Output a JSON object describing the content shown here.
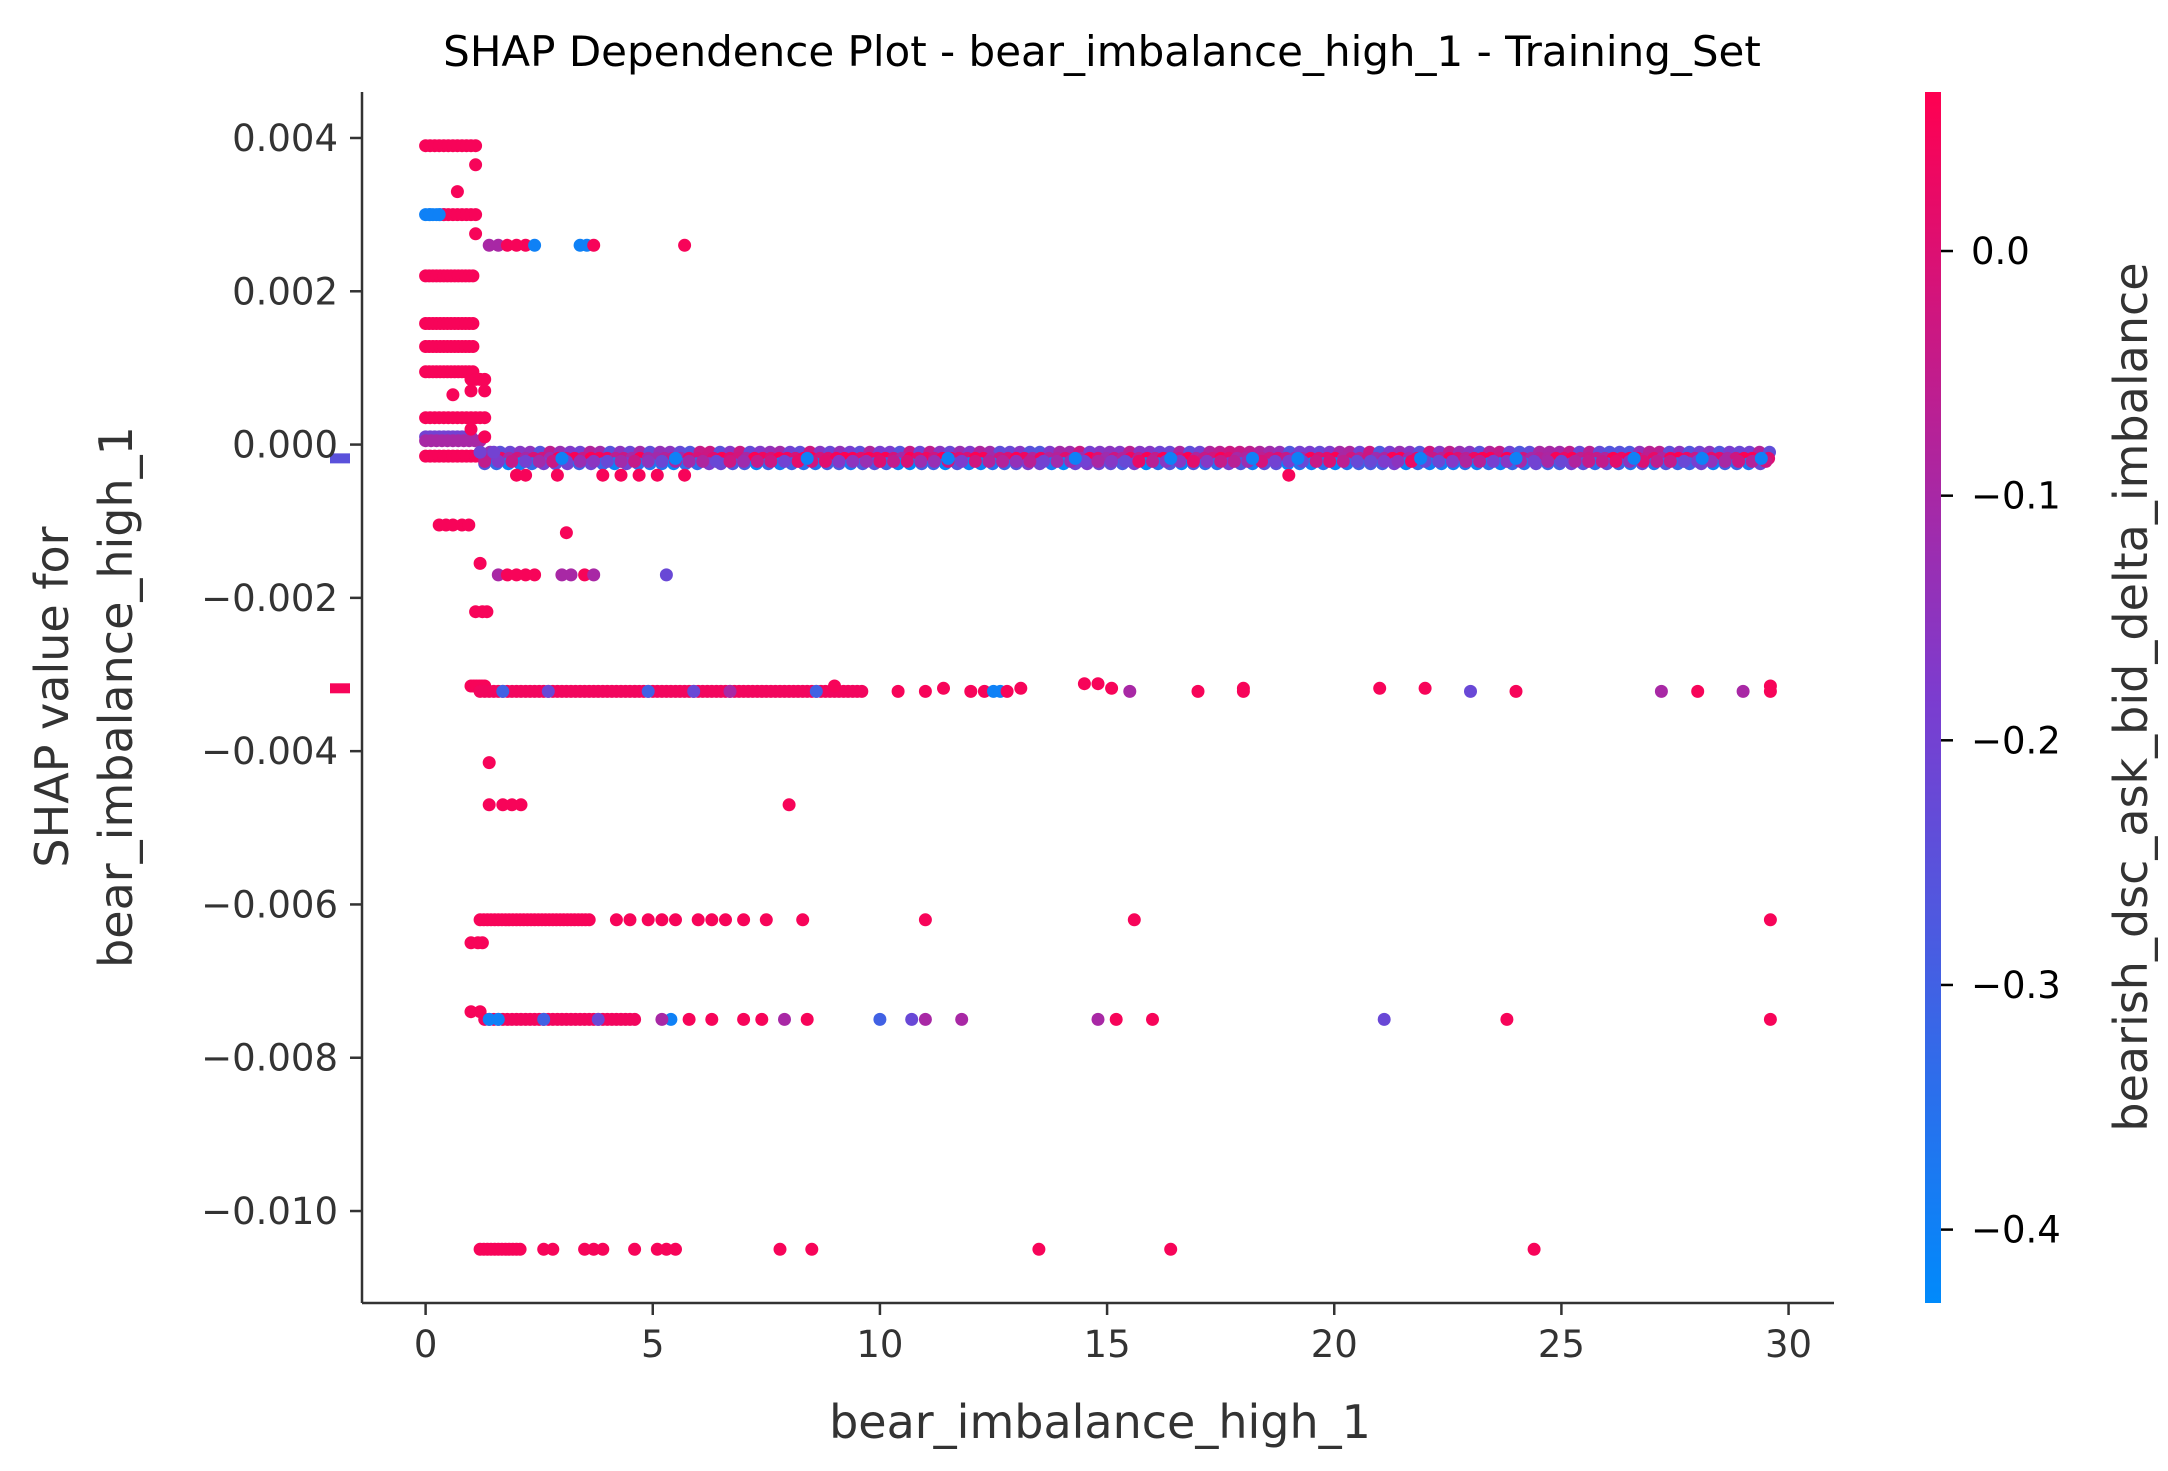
{
  "chart_data": {
    "type": "scatter",
    "title": "SHAP Dependence Plot - bear_imbalance_high_1 - Training_Set",
    "xlabel": "bear_imbalance_high_1",
    "ylabel_line1": "SHAP value for",
    "ylabel_line2": "bear_imbalance_high_1",
    "xlim": [
      -1.4,
      31.0
    ],
    "ylim": [
      -0.0112,
      0.0046
    ],
    "x_ticks": [
      {
        "value": 0,
        "label": "0"
      },
      {
        "value": 5,
        "label": "5"
      },
      {
        "value": 10,
        "label": "10"
      },
      {
        "value": 15,
        "label": "15"
      },
      {
        "value": 20,
        "label": "20"
      },
      {
        "value": 25,
        "label": "25"
      },
      {
        "value": 30,
        "label": "30"
      }
    ],
    "y_ticks": [
      {
        "value": 0.004,
        "label": "0.004"
      },
      {
        "value": 0.002,
        "label": "0.002"
      },
      {
        "value": 0.0,
        "label": "0.000"
      },
      {
        "value": -0.002,
        "label": "−0.002"
      },
      {
        "value": -0.004,
        "label": "−0.004"
      },
      {
        "value": -0.006,
        "label": "−0.006"
      },
      {
        "value": -0.008,
        "label": "−0.008"
      },
      {
        "value": -0.01,
        "label": "−0.010"
      }
    ],
    "colorbar": {
      "label": "bearish_dsc_ask_bid_delta_imbalance",
      "range": [
        -0.43,
        0.065
      ],
      "low_color": "#008afb",
      "mid_color": "#7c3ccf",
      "high_color": "#ff0051",
      "ticks": [
        {
          "value": 0.0,
          "label": "0.0"
        },
        {
          "value": -0.1,
          "label": "−0.1"
        },
        {
          "value": -0.2,
          "label": "−0.2"
        },
        {
          "value": -0.3,
          "label": "−0.3"
        },
        {
          "value": -0.4,
          "label": "−0.4"
        }
      ]
    },
    "missing_value_markers": [
      {
        "y": -0.00018,
        "color_value": -0.25
      },
      {
        "y": -0.00318,
        "color_value": 0.05
      }
    ],
    "bands": [
      {
        "y": 0.0039,
        "x_from": 0.0,
        "x_to": 1.1,
        "step": 0.1,
        "c": 0.05
      },
      {
        "y": 0.003,
        "x_from": 0.0,
        "x_to": 0.4,
        "step": 0.08,
        "c": -0.4
      },
      {
        "y": 0.003,
        "x_from": 0.4,
        "x_to": 1.1,
        "step": 0.1,
        "c": 0.05
      },
      {
        "y": 0.0022,
        "x_from": 0.0,
        "x_to": 1.1,
        "step": 0.08,
        "c": 0.05
      },
      {
        "y": 0.00158,
        "x_from": 0.0,
        "x_to": 1.1,
        "step": 0.08,
        "c": 0.05
      },
      {
        "y": 0.00128,
        "x_from": 0.0,
        "x_to": 1.1,
        "step": 0.08,
        "c": 0.05
      },
      {
        "y": 0.00095,
        "x_from": 0.0,
        "x_to": 1.1,
        "step": 0.08,
        "c": 0.05
      },
      {
        "y": 0.00085,
        "x_from": 1.0,
        "x_to": 1.3,
        "step": 0.1,
        "c": 0.05
      },
      {
        "y": 0.00035,
        "x_from": 0.0,
        "x_to": 1.3,
        "step": 0.1,
        "c": 0.05
      },
      {
        "y": 0.0001,
        "x_from": 0.0,
        "x_to": 1.0,
        "step": 0.1,
        "c": -0.2
      },
      {
        "y": 5e-05,
        "x_from": 0.0,
        "x_to": 1.2,
        "step": 0.12,
        "c": -0.1
      },
      {
        "y": -0.00015,
        "x_from": 0.0,
        "x_to": 1.3,
        "step": 0.1,
        "c": 0.05
      },
      {
        "y": -0.0001,
        "x_from": 1.2,
        "x_to": 29.6,
        "step": 0.22,
        "c": -0.15
      },
      {
        "y": -0.00018,
        "x_from": 1.3,
        "x_to": 29.6,
        "step": 0.18,
        "c": 0.0
      },
      {
        "y": -0.00025,
        "x_from": 1.3,
        "x_to": 29.6,
        "step": 0.26,
        "c": -0.3
      },
      {
        "y": -0.00022,
        "x_from": 1.3,
        "x_to": 29.6,
        "step": 0.3,
        "c": -0.1
      },
      {
        "y": -0.00315,
        "x_from": 1.0,
        "x_to": 1.3,
        "step": 0.06,
        "c": 0.05
      },
      {
        "y": -0.00322,
        "x_from": 1.2,
        "x_to": 9.6,
        "step": 0.1,
        "c": 0.04
      },
      {
        "y": -0.0062,
        "x_from": 1.2,
        "x_to": 3.6,
        "step": 0.08,
        "c": 0.05
      },
      {
        "y": -0.0075,
        "x_from": 1.3,
        "x_to": 4.6,
        "step": 0.1,
        "c": 0.04
      },
      {
        "y": -0.0105,
        "x_from": 1.2,
        "x_to": 2.1,
        "step": 0.08,
        "c": 0.05
      }
    ],
    "points": [
      {
        "x": 0.1,
        "y": 0.003,
        "c": -0.4
      },
      {
        "x": 0.3,
        "y": 0.003,
        "c": -0.4
      },
      {
        "x": 0.7,
        "y": 0.0033,
        "c": 0.05
      },
      {
        "x": 1.1,
        "y": 0.00365,
        "c": 0.05
      },
      {
        "x": 1.1,
        "y": 0.00275,
        "c": 0.05
      },
      {
        "x": 1.4,
        "y": 0.0026,
        "c": -0.1
      },
      {
        "x": 1.6,
        "y": 0.0026,
        "c": -0.1
      },
      {
        "x": 1.8,
        "y": 0.0026,
        "c": 0.05
      },
      {
        "x": 2.0,
        "y": 0.0026,
        "c": 0.05
      },
      {
        "x": 2.2,
        "y": 0.0026,
        "c": 0.05
      },
      {
        "x": 2.4,
        "y": 0.0026,
        "c": -0.4
      },
      {
        "x": 3.4,
        "y": 0.0026,
        "c": -0.4
      },
      {
        "x": 3.55,
        "y": 0.0026,
        "c": -0.4
      },
      {
        "x": 3.7,
        "y": 0.0026,
        "c": 0.05
      },
      {
        "x": 5.7,
        "y": 0.0026,
        "c": 0.05
      },
      {
        "x": 1.0,
        "y": 0.0007,
        "c": 0.05
      },
      {
        "x": 1.3,
        "y": 0.0007,
        "c": 0.05
      },
      {
        "x": 0.6,
        "y": 0.00065,
        "c": 0.05
      },
      {
        "x": 1.3,
        "y": 0.0001,
        "c": 0.05
      },
      {
        "x": 1.0,
        "y": 0.0002,
        "c": 0.05
      },
      {
        "x": 1.2,
        "y": -0.0001,
        "c": -0.2
      },
      {
        "x": 1.5,
        "y": -0.0001,
        "c": -0.2
      },
      {
        "x": 3.0,
        "y": -0.00018,
        "c": -0.4
      },
      {
        "x": 5.5,
        "y": -0.00018,
        "c": -0.4
      },
      {
        "x": 8.4,
        "y": -0.00018,
        "c": -0.4
      },
      {
        "x": 11.5,
        "y": -0.00018,
        "c": -0.4
      },
      {
        "x": 14.3,
        "y": -0.00018,
        "c": -0.4
      },
      {
        "x": 16.4,
        "y": -0.00018,
        "c": -0.4
      },
      {
        "x": 18.2,
        "y": -0.00018,
        "c": -0.4
      },
      {
        "x": 19.2,
        "y": -0.00018,
        "c": -0.4
      },
      {
        "x": 21.9,
        "y": -0.00018,
        "c": -0.4
      },
      {
        "x": 24.0,
        "y": -0.00018,
        "c": -0.4
      },
      {
        "x": 26.6,
        "y": -0.00018,
        "c": -0.4
      },
      {
        "x": 28.1,
        "y": -0.00018,
        "c": -0.4
      },
      {
        "x": 29.4,
        "y": -0.00018,
        "c": -0.4
      },
      {
        "x": 2.0,
        "y": -0.0004,
        "c": 0.05
      },
      {
        "x": 2.2,
        "y": -0.0004,
        "c": 0.05
      },
      {
        "x": 2.9,
        "y": -0.0004,
        "c": 0.05
      },
      {
        "x": 3.9,
        "y": -0.0004,
        "c": 0.05
      },
      {
        "x": 4.3,
        "y": -0.0004,
        "c": 0.05
      },
      {
        "x": 4.7,
        "y": -0.0004,
        "c": 0.05
      },
      {
        "x": 5.1,
        "y": -0.0004,
        "c": 0.05
      },
      {
        "x": 5.7,
        "y": -0.0004,
        "c": 0.05
      },
      {
        "x": 19.0,
        "y": -0.0004,
        "c": 0.05
      },
      {
        "x": 0.3,
        "y": -0.00105,
        "c": 0.05
      },
      {
        "x": 0.45,
        "y": -0.00105,
        "c": 0.05
      },
      {
        "x": 0.6,
        "y": -0.00105,
        "c": 0.05
      },
      {
        "x": 0.8,
        "y": -0.00105,
        "c": 0.05
      },
      {
        "x": 0.95,
        "y": -0.00105,
        "c": 0.05
      },
      {
        "x": 3.1,
        "y": -0.00115,
        "c": 0.05
      },
      {
        "x": 1.2,
        "y": -0.00155,
        "c": 0.05
      },
      {
        "x": 1.6,
        "y": -0.0017,
        "c": -0.1
      },
      {
        "x": 1.8,
        "y": -0.0017,
        "c": 0.05
      },
      {
        "x": 2.0,
        "y": -0.0017,
        "c": 0.05
      },
      {
        "x": 2.2,
        "y": -0.0017,
        "c": 0.05
      },
      {
        "x": 2.4,
        "y": -0.0017,
        "c": 0.05
      },
      {
        "x": 3.0,
        "y": -0.0017,
        "c": -0.1
      },
      {
        "x": 3.2,
        "y": -0.0017,
        "c": -0.1
      },
      {
        "x": 3.5,
        "y": -0.0017,
        "c": 0.05
      },
      {
        "x": 3.7,
        "y": -0.0017,
        "c": -0.1
      },
      {
        "x": 5.3,
        "y": -0.0017,
        "c": -0.22
      },
      {
        "x": 1.1,
        "y": -0.00218,
        "c": 0.05
      },
      {
        "x": 1.25,
        "y": -0.00218,
        "c": 0.05
      },
      {
        "x": 1.35,
        "y": -0.00218,
        "c": 0.05
      },
      {
        "x": 1.7,
        "y": -0.00322,
        "c": -0.3
      },
      {
        "x": 2.7,
        "y": -0.00322,
        "c": -0.22
      },
      {
        "x": 4.9,
        "y": -0.00322,
        "c": -0.3
      },
      {
        "x": 5.9,
        "y": -0.00322,
        "c": -0.22
      },
      {
        "x": 6.7,
        "y": -0.00322,
        "c": -0.1
      },
      {
        "x": 8.6,
        "y": -0.00322,
        "c": -0.3
      },
      {
        "x": 9.0,
        "y": -0.00315,
        "c": 0.05
      },
      {
        "x": 10.4,
        "y": -0.00322,
        "c": 0.05
      },
      {
        "x": 11.0,
        "y": -0.00322,
        "c": 0.05
      },
      {
        "x": 11.4,
        "y": -0.00318,
        "c": 0.05
      },
      {
        "x": 12.0,
        "y": -0.00322,
        "c": 0.05
      },
      {
        "x": 12.3,
        "y": -0.00322,
        "c": 0.05
      },
      {
        "x": 12.5,
        "y": -0.00322,
        "c": -0.4
      },
      {
        "x": 12.65,
        "y": -0.00322,
        "c": -0.4
      },
      {
        "x": 12.8,
        "y": -0.00322,
        "c": 0.05
      },
      {
        "x": 13.1,
        "y": -0.00318,
        "c": 0.05
      },
      {
        "x": 14.5,
        "y": -0.00312,
        "c": 0.05
      },
      {
        "x": 14.8,
        "y": -0.00312,
        "c": 0.05
      },
      {
        "x": 15.1,
        "y": -0.00318,
        "c": 0.05
      },
      {
        "x": 15.5,
        "y": -0.00322,
        "c": -0.1
      },
      {
        "x": 17.0,
        "y": -0.00322,
        "c": 0.05
      },
      {
        "x": 18.0,
        "y": -0.00318,
        "c": 0.05
      },
      {
        "x": 18.0,
        "y": -0.00322,
        "c": 0.05
      },
      {
        "x": 21.0,
        "y": -0.00318,
        "c": 0.05
      },
      {
        "x": 22.0,
        "y": -0.00318,
        "c": 0.05
      },
      {
        "x": 23.0,
        "y": -0.00322,
        "c": -0.22
      },
      {
        "x": 24.0,
        "y": -0.00322,
        "c": 0.05
      },
      {
        "x": 27.2,
        "y": -0.00322,
        "c": -0.1
      },
      {
        "x": 28.0,
        "y": -0.00322,
        "c": 0.05
      },
      {
        "x": 29.0,
        "y": -0.00322,
        "c": -0.1
      },
      {
        "x": 29.6,
        "y": -0.00322,
        "c": 0.05
      },
      {
        "x": 29.6,
        "y": -0.00315,
        "c": 0.05
      },
      {
        "x": 1.4,
        "y": -0.00415,
        "c": 0.05
      },
      {
        "x": 1.4,
        "y": -0.0047,
        "c": 0.05
      },
      {
        "x": 1.7,
        "y": -0.0047,
        "c": 0.05
      },
      {
        "x": 1.9,
        "y": -0.0047,
        "c": 0.05
      },
      {
        "x": 2.1,
        "y": -0.0047,
        "c": 0.05
      },
      {
        "x": 8.0,
        "y": -0.0047,
        "c": 0.05
      },
      {
        "x": 1.0,
        "y": -0.0065,
        "c": 0.05
      },
      {
        "x": 1.15,
        "y": -0.0065,
        "c": 0.05
      },
      {
        "x": 1.25,
        "y": -0.0065,
        "c": 0.05
      },
      {
        "x": 4.2,
        "y": -0.0062,
        "c": 0.05
      },
      {
        "x": 4.5,
        "y": -0.0062,
        "c": 0.05
      },
      {
        "x": 4.9,
        "y": -0.0062,
        "c": 0.05
      },
      {
        "x": 5.2,
        "y": -0.0062,
        "c": 0.05
      },
      {
        "x": 5.5,
        "y": -0.0062,
        "c": 0.05
      },
      {
        "x": 6.0,
        "y": -0.0062,
        "c": 0.05
      },
      {
        "x": 6.3,
        "y": -0.0062,
        "c": 0.05
      },
      {
        "x": 6.6,
        "y": -0.0062,
        "c": 0.05
      },
      {
        "x": 7.0,
        "y": -0.0062,
        "c": 0.05
      },
      {
        "x": 7.5,
        "y": -0.0062,
        "c": 0.05
      },
      {
        "x": 8.3,
        "y": -0.0062,
        "c": 0.05
      },
      {
        "x": 11.0,
        "y": -0.0062,
        "c": 0.05
      },
      {
        "x": 15.6,
        "y": -0.0062,
        "c": 0.05
      },
      {
        "x": 29.6,
        "y": -0.0062,
        "c": 0.05
      },
      {
        "x": 1.0,
        "y": -0.0074,
        "c": 0.05
      },
      {
        "x": 1.2,
        "y": -0.0074,
        "c": 0.05
      },
      {
        "x": 1.4,
        "y": -0.0075,
        "c": -0.4
      },
      {
        "x": 1.6,
        "y": -0.0075,
        "c": -0.4
      },
      {
        "x": 2.6,
        "y": -0.0075,
        "c": -0.3
      },
      {
        "x": 3.8,
        "y": -0.0075,
        "c": -0.22
      },
      {
        "x": 5.4,
        "y": -0.0075,
        "c": -0.4
      },
      {
        "x": 5.2,
        "y": -0.0075,
        "c": -0.1
      },
      {
        "x": 5.8,
        "y": -0.0075,
        "c": 0.05
      },
      {
        "x": 6.3,
        "y": -0.0075,
        "c": 0.05
      },
      {
        "x": 7.0,
        "y": -0.0075,
        "c": 0.05
      },
      {
        "x": 7.4,
        "y": -0.0075,
        "c": 0.05
      },
      {
        "x": 7.9,
        "y": -0.0075,
        "c": -0.1
      },
      {
        "x": 8.4,
        "y": -0.0075,
        "c": 0.05
      },
      {
        "x": 10.0,
        "y": -0.0075,
        "c": -0.3
      },
      {
        "x": 10.7,
        "y": -0.0075,
        "c": -0.22
      },
      {
        "x": 11.0,
        "y": -0.0075,
        "c": -0.1
      },
      {
        "x": 11.8,
        "y": -0.0075,
        "c": -0.1
      },
      {
        "x": 14.8,
        "y": -0.0075,
        "c": -0.1
      },
      {
        "x": 15.2,
        "y": -0.0075,
        "c": 0.05
      },
      {
        "x": 16.0,
        "y": -0.0075,
        "c": 0.05
      },
      {
        "x": 21.1,
        "y": -0.0075,
        "c": -0.22
      },
      {
        "x": 23.8,
        "y": -0.0075,
        "c": 0.05
      },
      {
        "x": 29.6,
        "y": -0.0075,
        "c": 0.05
      },
      {
        "x": 2.6,
        "y": -0.0105,
        "c": 0.05
      },
      {
        "x": 2.8,
        "y": -0.0105,
        "c": 0.05
      },
      {
        "x": 3.5,
        "y": -0.0105,
        "c": 0.05
      },
      {
        "x": 3.7,
        "y": -0.0105,
        "c": 0.05
      },
      {
        "x": 3.9,
        "y": -0.0105,
        "c": 0.05
      },
      {
        "x": 4.6,
        "y": -0.0105,
        "c": 0.05
      },
      {
        "x": 5.1,
        "y": -0.0105,
        "c": 0.05
      },
      {
        "x": 5.3,
        "y": -0.0105,
        "c": 0.05
      },
      {
        "x": 5.5,
        "y": -0.0105,
        "c": 0.05
      },
      {
        "x": 7.8,
        "y": -0.0105,
        "c": 0.05
      },
      {
        "x": 8.5,
        "y": -0.0105,
        "c": 0.05
      },
      {
        "x": 13.5,
        "y": -0.0105,
        "c": 0.05
      },
      {
        "x": 16.4,
        "y": -0.0105,
        "c": 0.05
      },
      {
        "x": 24.4,
        "y": -0.0105,
        "c": 0.05
      }
    ]
  }
}
